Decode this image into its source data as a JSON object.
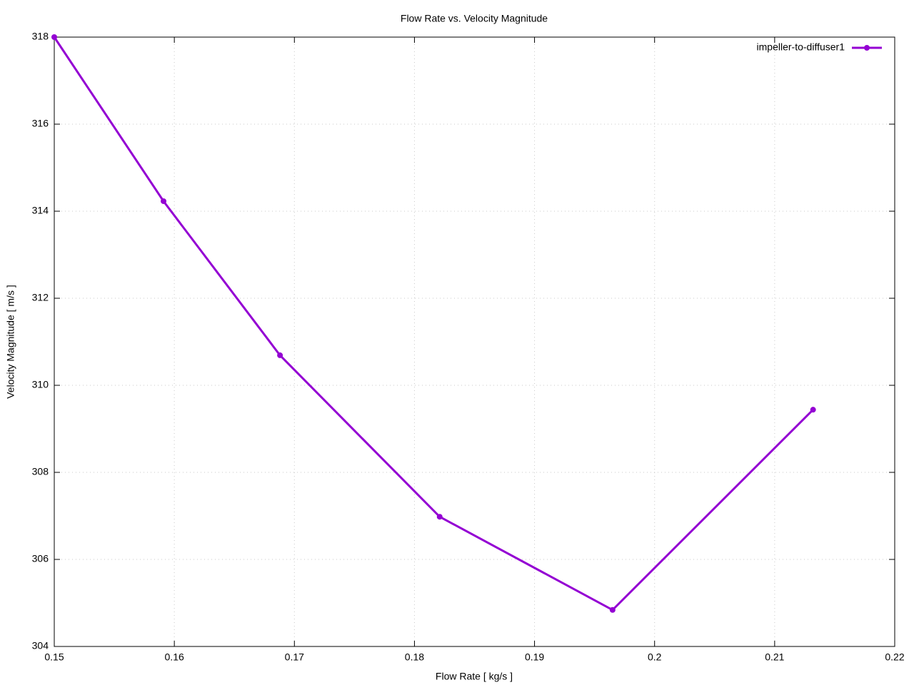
{
  "chart_data": {
    "type": "line",
    "title": "Flow Rate vs. Velocity Magnitude",
    "x_label": "Flow Rate [ kg/s ]",
    "y_label": "Velocity Magnitude [ m/s ]",
    "x": [
      0.15,
      0.1591,
      0.1688,
      0.1821,
      0.1965,
      0.2132
    ],
    "series": [
      {
        "name": "impeller-to-diffuser1",
        "color": "#9400d3",
        "values": [
          318,
          314.23,
          310.69,
          306.98,
          304.84,
          309.44
        ]
      }
    ],
    "xlim": [
      0.15,
      0.22
    ],
    "xticks": [
      0.15,
      0.16,
      0.17,
      0.18,
      0.19,
      0.2,
      0.21,
      0.22
    ],
    "ylim": [
      304,
      318
    ],
    "yticks": [
      304,
      306,
      308,
      310,
      312,
      314,
      316,
      318
    ],
    "grid": true,
    "legend": "top-right"
  }
}
